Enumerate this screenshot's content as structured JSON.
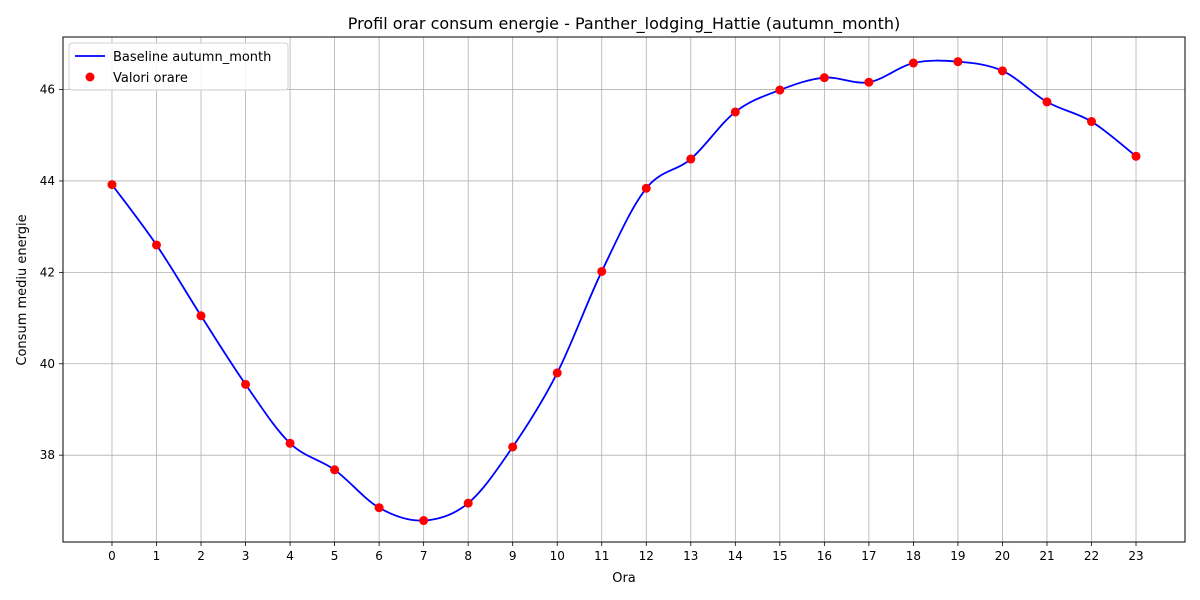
{
  "chart_data": {
    "type": "line",
    "title": "Profil orar consum energie - Panther_lodging_Hattie (autumn_month)",
    "xlabel": "Ora",
    "ylabel": "Consum mediu energie",
    "x": [
      0,
      1,
      2,
      3,
      4,
      5,
      6,
      7,
      8,
      9,
      10,
      11,
      12,
      13,
      14,
      15,
      16,
      17,
      18,
      19,
      20,
      21,
      22,
      23
    ],
    "xlim": [
      -1.1,
      24.1
    ],
    "ylim": [
      36.1,
      47.15
    ],
    "yticks": [
      38,
      40,
      42,
      44,
      46
    ],
    "grid": true,
    "legend_position": "top-left",
    "series": [
      {
        "name": "Baseline autumn_month",
        "kind": "line",
        "color": "#0000ff",
        "values": [
          43.92,
          42.6,
          41.05,
          39.55,
          38.26,
          37.68,
          36.85,
          36.57,
          36.95,
          38.18,
          39.8,
          42.02,
          43.84,
          44.48,
          45.51,
          45.99,
          46.26,
          46.16,
          46.58,
          46.61,
          46.41,
          45.73,
          45.3,
          44.54
        ]
      },
      {
        "name": "Valori orare",
        "kind": "scatter",
        "color": "#ff0000",
        "values": [
          43.92,
          42.6,
          41.05,
          39.55,
          38.26,
          37.68,
          36.85,
          36.57,
          36.95,
          38.18,
          39.8,
          42.02,
          43.84,
          44.48,
          45.51,
          45.99,
          46.26,
          46.16,
          46.58,
          46.61,
          46.41,
          45.73,
          45.3,
          44.54
        ]
      }
    ]
  }
}
